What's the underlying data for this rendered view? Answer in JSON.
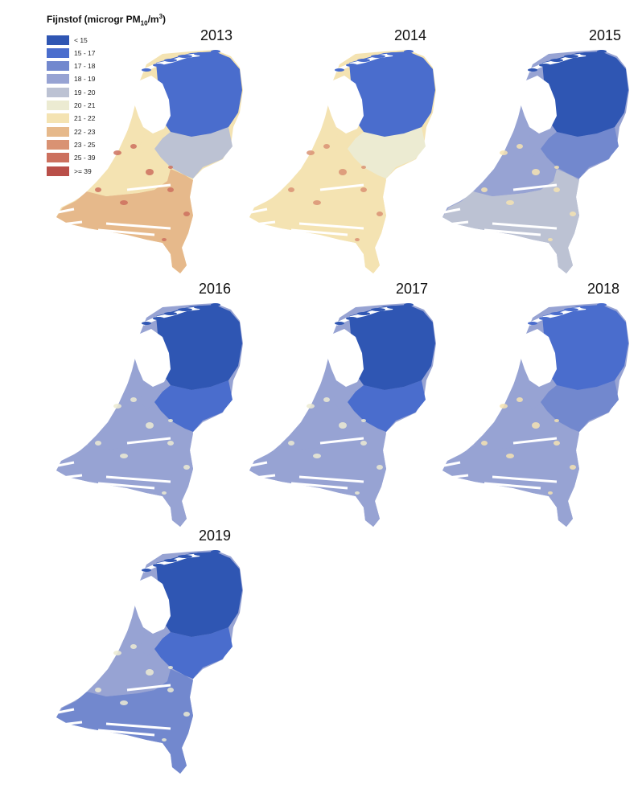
{
  "legend": {
    "title_prefix": "Fijnstof (microgr PM",
    "title_sub": "10",
    "title_mid": "/m",
    "title_sup": "3",
    "title_suffix": ")",
    "items": [
      {
        "label": "< 15",
        "color": "#2f56b3"
      },
      {
        "label": "15 - 17",
        "color": "#4a6dcd"
      },
      {
        "label": "17 - 18",
        "color": "#7288ce"
      },
      {
        "label": "18 - 19",
        "color": "#97a3d3"
      },
      {
        "label": "19 - 20",
        "color": "#bcc2d3"
      },
      {
        "label": "20 - 21",
        "color": "#ecebd2"
      },
      {
        "label": "21 - 22",
        "color": "#f4e3b2"
      },
      {
        "label": "22 - 23",
        "color": "#e6b98b"
      },
      {
        "label": "23 - 25",
        "color": "#d99273"
      },
      {
        "label": "25 - 39",
        "color": "#cc705e"
      },
      {
        "label": ">= 39",
        "color": "#b94f49"
      }
    ]
  },
  "maps": [
    {
      "year": "2013",
      "north": "#4a6dcd",
      "east": "#bcc2d3",
      "west": "#f4e3b2",
      "south": "#e6b98b",
      "hot": "#cc705e"
    },
    {
      "year": "2014",
      "north": "#4a6dcd",
      "east": "#ecebd2",
      "west": "#f4e3b2",
      "south": "#f4e3b2",
      "hot": "#d99273"
    },
    {
      "year": "2015",
      "north": "#2f56b3",
      "east": "#7288ce",
      "west": "#97a3d3",
      "south": "#bcc2d3",
      "hot": "#f4e3b2"
    },
    {
      "year": "2016",
      "north": "#2f56b3",
      "east": "#4a6dcd",
      "west": "#97a3d3",
      "south": "#97a3d3",
      "hot": "#ecebd2"
    },
    {
      "year": "2017",
      "north": "#2f56b3",
      "east": "#4a6dcd",
      "west": "#97a3d3",
      "south": "#97a3d3",
      "hot": "#ecebd2"
    },
    {
      "year": "2018",
      "north": "#4a6dcd",
      "east": "#7288ce",
      "west": "#97a3d3",
      "south": "#97a3d3",
      "hot": "#f4e3b2"
    },
    {
      "year": "2019",
      "north": "#2f56b3",
      "east": "#4a6dcd",
      "west": "#97a3d3",
      "south": "#7288ce",
      "hot": "#ecebd2"
    }
  ]
}
